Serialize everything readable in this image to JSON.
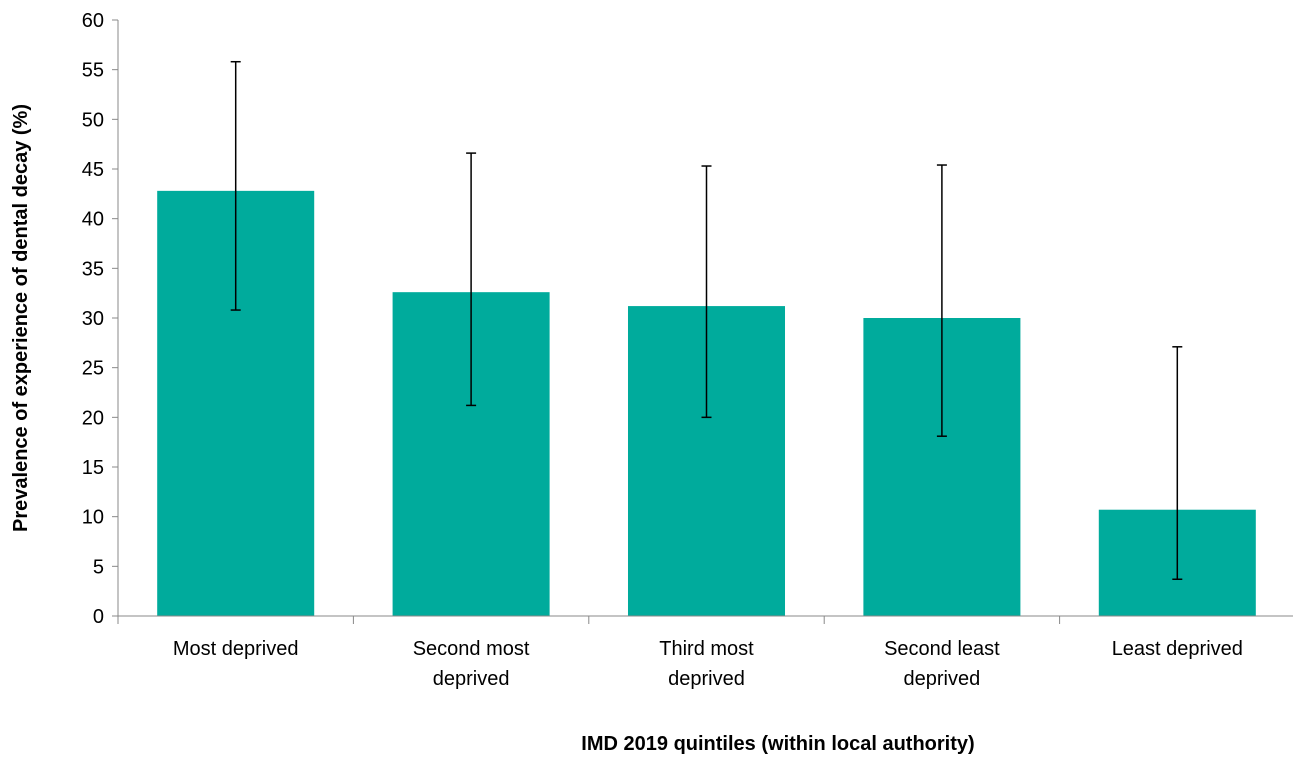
{
  "chart_data": {
    "type": "bar",
    "title": "",
    "xlabel": "IMD 2019 quintiles (within local authority)",
    "ylabel": "Prevalence of experience of dental decay (%)",
    "ylim": [
      0,
      60
    ],
    "yticks": [
      0,
      5,
      10,
      15,
      20,
      25,
      30,
      35,
      40,
      45,
      50,
      55,
      60
    ],
    "grid": false,
    "legend": "none",
    "bar_color": "#00AB9C",
    "categories": [
      [
        "Most deprived"
      ],
      [
        "Second most",
        "deprived"
      ],
      [
        "Third most",
        "deprived"
      ],
      [
        "Second least",
        "deprived"
      ],
      [
        "Least deprived"
      ]
    ],
    "values": [
      42.8,
      32.6,
      31.2,
      30.0,
      10.7
    ],
    "error_low": [
      30.8,
      21.2,
      20.0,
      18.1,
      3.7
    ],
    "error_high": [
      55.8,
      46.6,
      45.3,
      45.4,
      27.1
    ]
  }
}
